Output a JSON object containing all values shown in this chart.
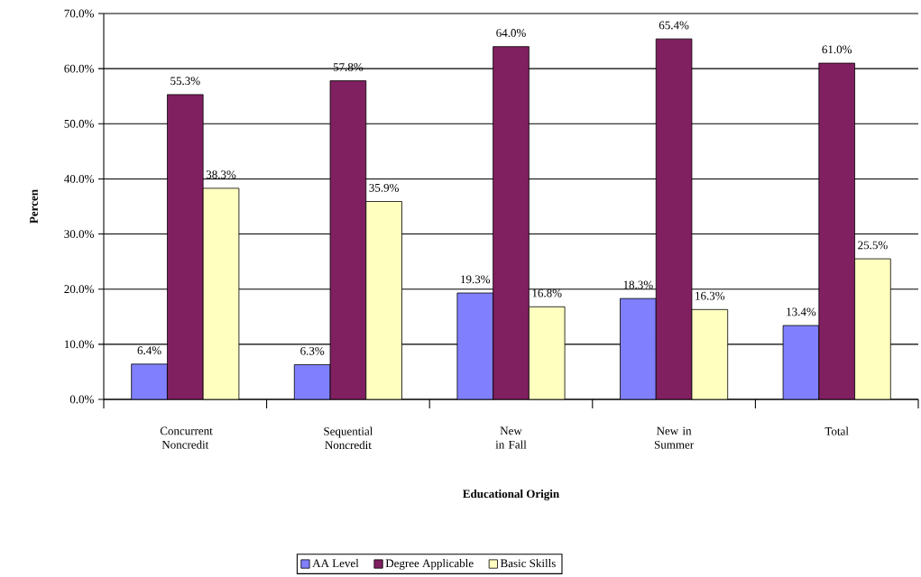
{
  "chart_data": {
    "type": "bar",
    "xlabel": "Educational Origin",
    "ylabel": "Percen",
    "categories": [
      "Concurrent Noncredit",
      "Sequential Noncredit",
      "New in Fall",
      "New in Summer",
      "Total"
    ],
    "series": [
      {
        "name": "AA Level",
        "color": "#8080ff",
        "values": [
          6.4,
          6.3,
          19.3,
          18.3,
          13.4
        ],
        "value_labels": [
          "6.4%",
          "6.3%",
          "19.3%",
          "18.3%",
          "13.4%"
        ]
      },
      {
        "name": "Degree Applicable",
        "color": "#802060",
        "values": [
          55.3,
          57.8,
          64.0,
          65.4,
          61.0
        ],
        "value_labels": [
          "55.3%",
          "57.8%",
          "64.0%",
          "65.4%",
          "61.0%"
        ]
      },
      {
        "name": "Basic Skills",
        "color": "#ffffc0",
        "values": [
          38.3,
          35.9,
          16.8,
          16.3,
          25.5
        ],
        "value_labels": [
          "38.3%",
          "35.9%",
          "16.8%",
          "16.3%",
          "25.5%"
        ]
      }
    ],
    "ylim": [
      0,
      70
    ],
    "yticks": [
      {
        "value": 0,
        "label": "0.0%"
      },
      {
        "value": 10,
        "label": "10.0%"
      },
      {
        "value": 20,
        "label": "20.0%"
      },
      {
        "value": 30,
        "label": "30.0%"
      },
      {
        "value": 40,
        "label": "40.0%"
      },
      {
        "value": 50,
        "label": "50.0%"
      },
      {
        "value": 60,
        "label": "60.0%"
      },
      {
        "value": 70,
        "label": "70.0%"
      }
    ],
    "grid": "y",
    "legend": "bottom"
  }
}
